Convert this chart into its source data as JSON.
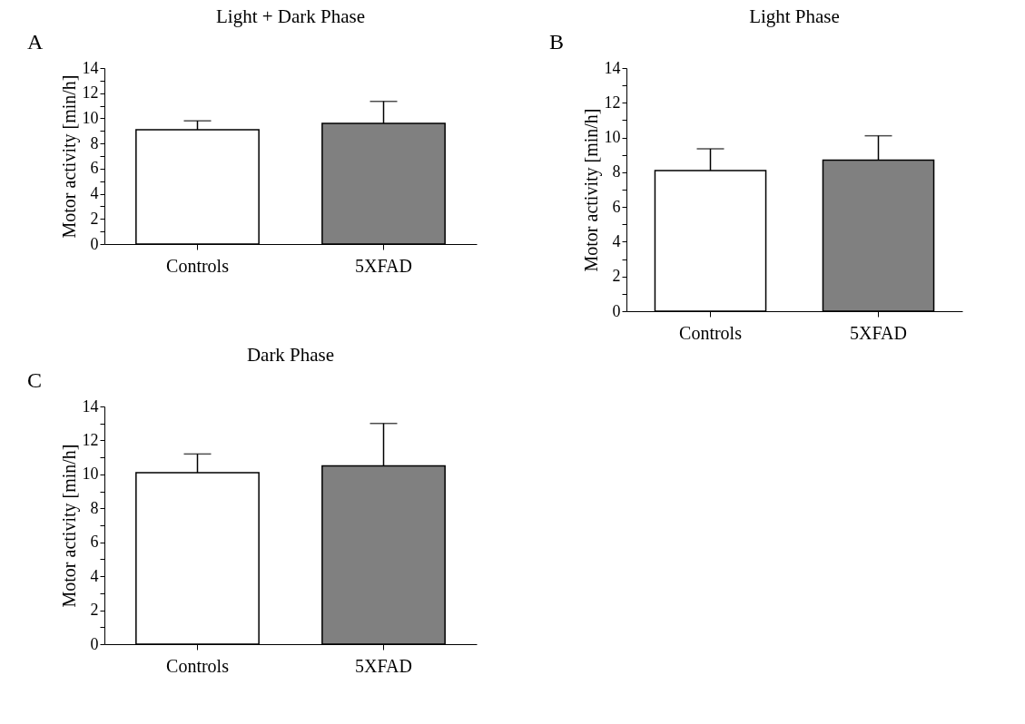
{
  "chart_data": [
    {
      "type": "bar",
      "title": "Light + Dark  Phase",
      "ylabel": "Motor activity [min/h]",
      "annotations": [
        "A"
      ],
      "categories": [
        "Controls",
        "5XFAD"
      ],
      "values": [
        9.1,
        9.6
      ],
      "colors": [
        "#ffffff",
        "#808080"
      ],
      "errors": [
        [
          9.1,
          9.8
        ],
        [
          9.6,
          11.35
        ]
      ],
      "ylim": [
        0,
        14
      ],
      "yticks": [
        0,
        {
          "value": 1,
          "label": null
        },
        2,
        {
          "value": 3,
          "label": null
        },
        4,
        {
          "value": 5,
          "label": null
        },
        6,
        {
          "value": 7,
          "label": null
        },
        8,
        {
          "value": 9,
          "label": null
        },
        10,
        {
          "value": 11,
          "label": null
        },
        12,
        {
          "value": 13,
          "label": null
        },
        14
      ],
      "grid": false,
      "legend": false
    },
    {
      "type": "bar",
      "title": "Light  Phase",
      "ylabel": "Motor activity [min/h]",
      "annotations": [
        "B"
      ],
      "categories": [
        "Controls",
        "5XFAD"
      ],
      "values": [
        8.1,
        8.7
      ],
      "colors": [
        "#ffffff",
        "#808080"
      ],
      "errors": [
        [
          8.1,
          9.35
        ],
        [
          8.7,
          10.1
        ]
      ],
      "ylim": [
        0,
        14
      ],
      "yticks": [
        0,
        {
          "value": 1,
          "label": null
        },
        2,
        {
          "value": 3,
          "label": null
        },
        4,
        {
          "value": 5,
          "label": null
        },
        6,
        {
          "value": 7,
          "label": null
        },
        8,
        {
          "value": 9,
          "label": null
        },
        10,
        {
          "value": 11,
          "label": null
        },
        12,
        {
          "value": 13,
          "label": null
        },
        14
      ],
      "grid": false,
      "legend": false
    },
    {
      "type": "bar",
      "title": "Dark  Phase",
      "ylabel": "Motor activity [min/h]",
      "annotations": [
        "C"
      ],
      "categories": [
        "Controls",
        "5XFAD"
      ],
      "values": [
        10.1,
        10.5
      ],
      "colors": [
        "#ffffff",
        "#808080"
      ],
      "errors": [
        [
          10.1,
          11.2
        ],
        [
          10.5,
          13.0
        ]
      ],
      "ylim": [
        0,
        14
      ],
      "yticks": [
        0,
        {
          "value": 1,
          "label": null
        },
        2,
        {
          "value": 3,
          "label": null
        },
        4,
        {
          "value": 5,
          "label": null
        },
        6,
        {
          "value": 7,
          "label": null
        },
        8,
        {
          "value": 9,
          "label": null
        },
        10,
        {
          "value": 11,
          "label": null
        },
        12,
        {
          "value": 13,
          "label": null
        },
        14
      ],
      "grid": false,
      "legend": false
    }
  ]
}
